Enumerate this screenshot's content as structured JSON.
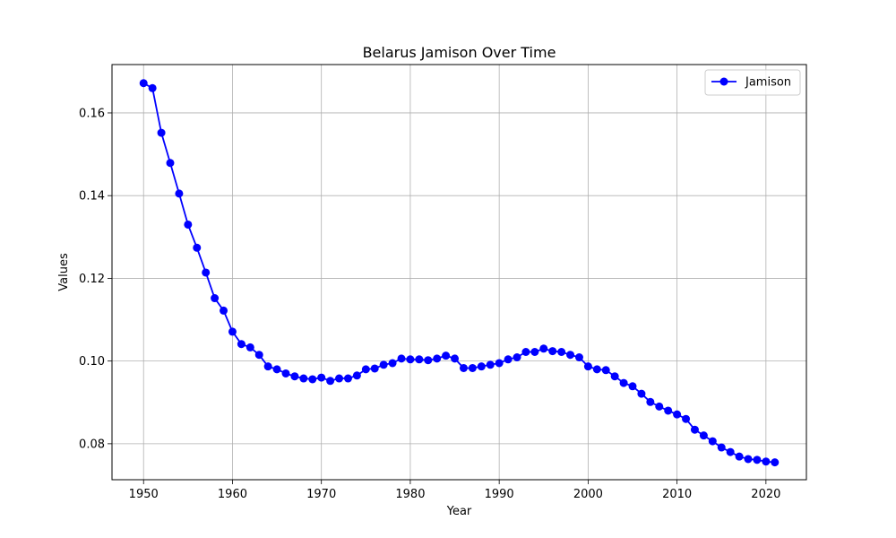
{
  "chart_data": {
    "type": "line",
    "title": "Belarus Jamison Over Time",
    "xlabel": "Year",
    "ylabel": "Values",
    "xlim": [
      1946.45,
      2024.55
    ],
    "ylim": [
      0.0713,
      0.1717
    ],
    "x_ticks": [
      1950,
      1960,
      1970,
      1980,
      1990,
      2000,
      2010,
      2020
    ],
    "y_ticks": [
      0.08,
      0.1,
      0.12,
      0.14,
      0.16
    ],
    "y_tick_labels": [
      "0.08",
      "0.10",
      "0.12",
      "0.14",
      "0.16"
    ],
    "grid": true,
    "legend_position": "top-right",
    "series": [
      {
        "name": "Jamison",
        "color": "#0000ff",
        "marker": "circle",
        "x": [
          1950,
          1951,
          1952,
          1953,
          1954,
          1955,
          1956,
          1957,
          1958,
          1959,
          1960,
          1961,
          1962,
          1963,
          1964,
          1965,
          1966,
          1967,
          1968,
          1969,
          1970,
          1971,
          1972,
          1973,
          1974,
          1975,
          1976,
          1977,
          1978,
          1979,
          1980,
          1981,
          1982,
          1983,
          1984,
          1985,
          1986,
          1987,
          1988,
          1989,
          1990,
          1991,
          1992,
          1993,
          1994,
          1995,
          1996,
          1997,
          1998,
          1999,
          2000,
          2001,
          2002,
          2003,
          2004,
          2005,
          2006,
          2007,
          2008,
          2009,
          2010,
          2011,
          2012,
          2013,
          2014,
          2015,
          2016,
          2017,
          2018,
          2019,
          2020,
          2021
        ],
        "values": [
          0.1672,
          0.166,
          0.1552,
          0.1479,
          0.1405,
          0.133,
          0.1274,
          0.1214,
          0.1152,
          0.1122,
          0.1071,
          0.1041,
          0.1033,
          0.1015,
          0.0987,
          0.098,
          0.097,
          0.0963,
          0.0958,
          0.0956,
          0.096,
          0.0952,
          0.0958,
          0.0958,
          0.0965,
          0.098,
          0.0982,
          0.0991,
          0.0995,
          0.1006,
          0.1004,
          0.1004,
          0.1002,
          0.1006,
          0.1013,
          0.1006,
          0.0983,
          0.0983,
          0.0987,
          0.0991,
          0.0995,
          0.1004,
          0.1009,
          0.1022,
          0.1022,
          0.103,
          0.1024,
          0.1022,
          0.1015,
          0.1009,
          0.0987,
          0.098,
          0.0978,
          0.0963,
          0.0947,
          0.0939,
          0.0921,
          0.0901,
          0.089,
          0.088,
          0.0871,
          0.086,
          0.0834,
          0.082,
          0.0806,
          0.0791,
          0.078,
          0.0769,
          0.0763,
          0.0761,
          0.0757,
          0.0755
        ]
      }
    ]
  }
}
